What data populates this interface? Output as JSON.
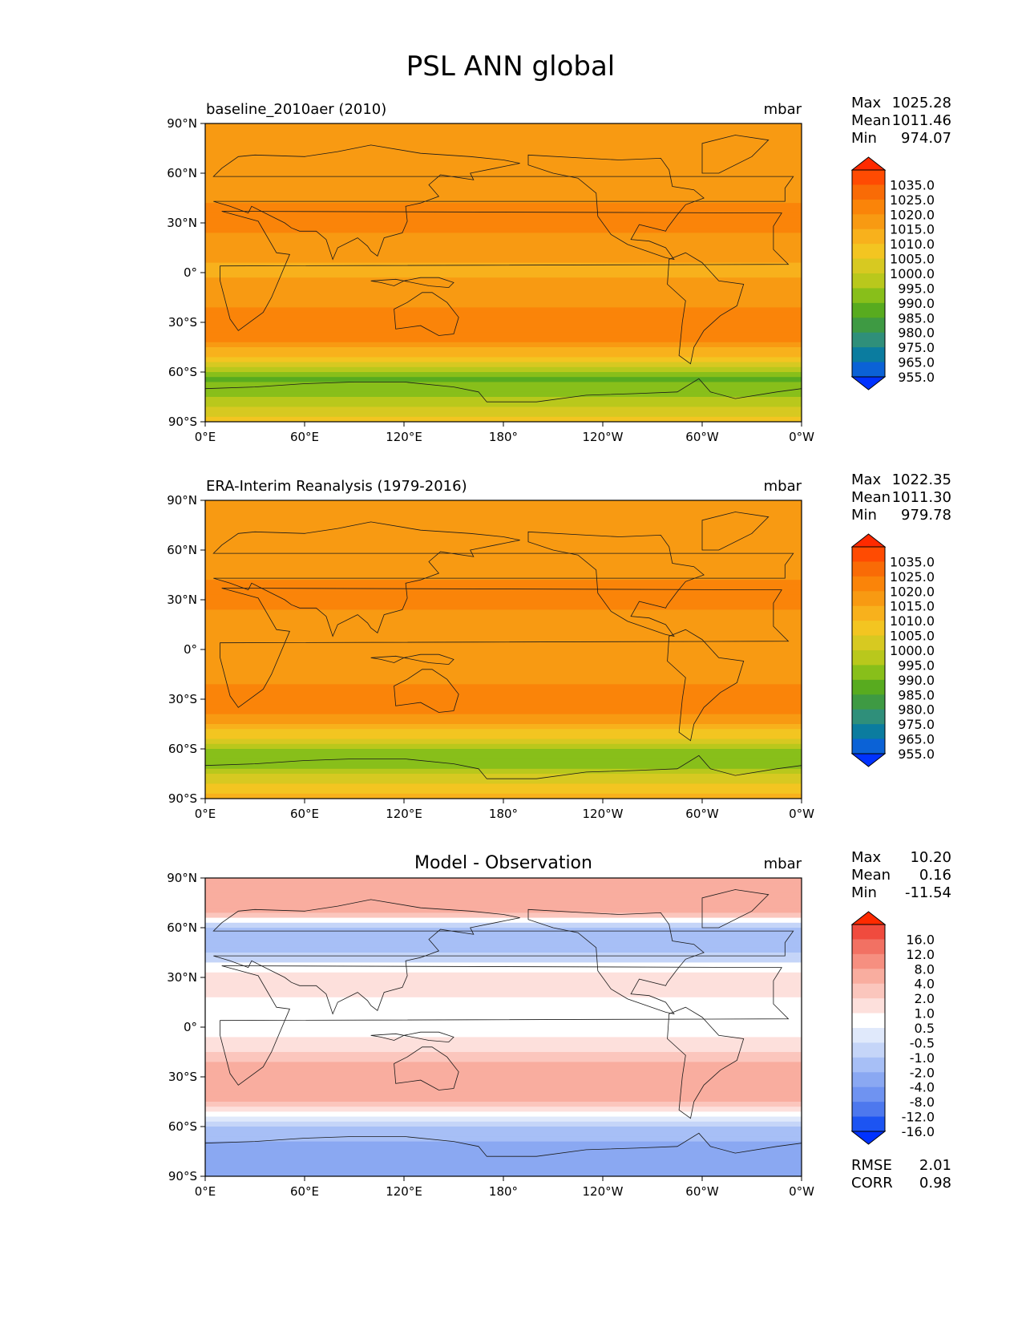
{
  "figure_title": "PSL ANN global",
  "colors": {
    "test_ref_palette": [
      "#0032ff",
      "#0b62d6",
      "#0b7c9f",
      "#2f8f7a",
      "#3e9a43",
      "#58ab1f",
      "#88bf1a",
      "#b9c81c",
      "#d7c921",
      "#f3c521",
      "#f8b11c",
      "#f89a12",
      "#fa8409",
      "#f96b06",
      "#ff4b02",
      "#ff2a00"
    ],
    "diff_palette": [
      "#0032ff",
      "#1c54f2",
      "#4d78ee",
      "#6f93f1",
      "#8aa8f2",
      "#a7bff6",
      "#c5d5f8",
      "#e0e9fb",
      "#ffffff",
      "#fde0dc",
      "#fbc6bd",
      "#f9ad9f",
      "#f68f80",
      "#f27163",
      "#f04b3e",
      "#ff2a00"
    ],
    "coast": "#1a1a1a"
  },
  "chart_data": [
    {
      "type": "contour-map",
      "title_left": "baseline_2010aer (2010)",
      "units": "mbar",
      "stats": [
        {
          "label": "Max",
          "value": "1025.28"
        },
        {
          "label": "Mean",
          "value": "1011.46"
        },
        {
          "label": "Min",
          "value": "974.07"
        }
      ],
      "colorbar_levels": [
        "1035.0",
        "1025.0",
        "1020.0",
        "1015.0",
        "1010.0",
        "1005.0",
        "1000.0",
        "995.0",
        "990.0",
        "985.0",
        "980.0",
        "975.0",
        "965.0",
        "955.0"
      ],
      "lon_ticks": [
        "0°E",
        "60°E",
        "120°E",
        "180°",
        "120°W",
        "60°W",
        "0°W"
      ],
      "lat_ticks": [
        "90°N",
        "60°N",
        "30°N",
        "0°",
        "30°S",
        "60°S",
        "90°S"
      ],
      "xlim": [
        0,
        360
      ],
      "ylim": [
        -90,
        90
      ],
      "zonal_profile_mbar": {
        "lat": [
          90,
          70,
          60,
          50,
          40,
          30,
          15,
          0,
          -15,
          -30,
          -40,
          -50,
          -60,
          -65,
          -70,
          -80,
          -90
        ],
        "value": [
          1013,
          1014,
          1011,
          1012,
          1016,
          1017,
          1012,
          1009,
          1013,
          1018,
          1016,
          1005,
          990,
          984,
          986,
          995,
          1002
        ]
      }
    },
    {
      "type": "contour-map",
      "title_left": "ERA-Interim Reanalysis (1979-2016)",
      "units": "mbar",
      "stats": [
        {
          "label": "Max",
          "value": "1022.35"
        },
        {
          "label": "Mean",
          "value": "1011.30"
        },
        {
          "label": "Min",
          "value": "979.78"
        }
      ],
      "colorbar_levels": [
        "1035.0",
        "1025.0",
        "1020.0",
        "1015.0",
        "1010.0",
        "1005.0",
        "1000.0",
        "995.0",
        "990.0",
        "985.0",
        "980.0",
        "975.0",
        "965.0",
        "955.0"
      ],
      "lon_ticks": [
        "0°E",
        "60°E",
        "120°E",
        "180°",
        "120°W",
        "60°W",
        "0°W"
      ],
      "lat_ticks": [
        "90°N",
        "60°N",
        "30°N",
        "0°",
        "30°S",
        "60°S",
        "90°S"
      ],
      "xlim": [
        0,
        360
      ],
      "ylim": [
        -90,
        90
      ],
      "zonal_profile_mbar": {
        "lat": [
          90,
          70,
          60,
          50,
          40,
          30,
          15,
          0,
          -15,
          -30,
          -40,
          -50,
          -60,
          -65,
          -70,
          -80,
          -90
        ],
        "value": [
          1013,
          1014,
          1012,
          1013,
          1016,
          1017,
          1012,
          1010,
          1013,
          1017,
          1015,
          1004,
          991,
          986,
          989,
          1000,
          1008
        ]
      }
    },
    {
      "type": "contour-map",
      "title_center": "Model - Observation",
      "units": "mbar",
      "stats": [
        {
          "label": "Max",
          "value": "10.20"
        },
        {
          "label": "Mean",
          "value": "0.16"
        },
        {
          "label": "Min",
          "value": "-11.54"
        }
      ],
      "colorbar_levels": [
        "16.0",
        "12.0",
        "8.0",
        "4.0",
        "2.0",
        "1.0",
        "0.5",
        "-0.5",
        "-1.0",
        "-2.0",
        "-4.0",
        "-8.0",
        "-12.0",
        "-16.0"
      ],
      "lon_ticks": [
        "0°E",
        "60°E",
        "120°E",
        "180°",
        "120°W",
        "60°W",
        "0°W"
      ],
      "lat_ticks": [
        "90°N",
        "60°N",
        "30°N",
        "0°",
        "30°S",
        "60°S",
        "90°S"
      ],
      "xlim": [
        0,
        360
      ],
      "ylim": [
        -90,
        90
      ],
      "metrics": [
        {
          "label": "RMSE",
          "value": "2.01"
        },
        {
          "label": "CORR",
          "value": "0.98"
        }
      ],
      "zonal_profile_mbar": {
        "lat": [
          90,
          70,
          60,
          50,
          40,
          30,
          15,
          0,
          -15,
          -30,
          -40,
          -50,
          -60,
          -65,
          -70,
          -80,
          -90
        ],
        "value": [
          3,
          2,
          -2,
          -3,
          -1,
          1,
          0.3,
          0,
          1,
          3,
          3,
          0.5,
          -2,
          -4,
          -4,
          -5,
          -5
        ]
      }
    }
  ]
}
